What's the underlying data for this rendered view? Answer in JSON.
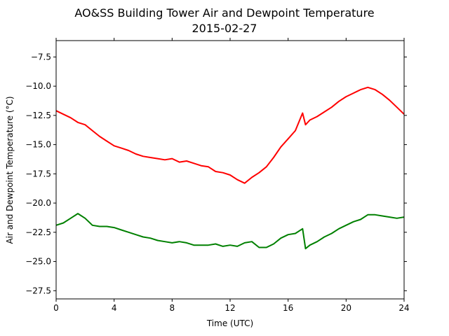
{
  "chart_data": {
    "type": "line",
    "title": "AO&SS Building Tower Air and Dewpoint Temperature",
    "subtitle": "2015-02-27",
    "xlabel": "Time (UTC)",
    "ylabel": "Air and Dewpoint Temperature (°C)",
    "xlim": [
      0,
      24
    ],
    "ylim": [
      -28.2,
      -6.1
    ],
    "xticks": [
      0,
      4,
      8,
      12,
      16,
      20,
      24
    ],
    "yticks": [
      -27.5,
      -25.0,
      -22.5,
      -20.0,
      -17.5,
      -15.0,
      -12.5,
      -10.0,
      -7.5
    ],
    "ytick_labels": [
      "−27.5",
      "−25.0",
      "−22.5",
      "−20.0",
      "−17.5",
      "−15.0",
      "−12.5",
      "−10.0",
      "−7.5"
    ],
    "grid": false,
    "series": [
      {
        "color": "#ff0000",
        "x": [
          0,
          0.5,
          1,
          1.5,
          2,
          2.5,
          3,
          3.5,
          4,
          4.5,
          5,
          5.5,
          6,
          6.5,
          7,
          7.5,
          8,
          8.5,
          9,
          9.5,
          10,
          10.5,
          11,
          11.5,
          12,
          12.5,
          13,
          13.5,
          14,
          14.5,
          15,
          15.5,
          16,
          16.5,
          17,
          17.2,
          17.5,
          18,
          18.5,
          19,
          19.5,
          20,
          20.5,
          21,
          21.5,
          22,
          22.5,
          23,
          23.5,
          24
        ],
        "y": [
          -12.1,
          -12.4,
          -12.7,
          -13.1,
          -13.3,
          -13.8,
          -14.3,
          -14.7,
          -15.1,
          -15.3,
          -15.5,
          -15.8,
          -16.0,
          -16.1,
          -16.2,
          -16.3,
          -16.2,
          -16.5,
          -16.4,
          -16.6,
          -16.8,
          -16.9,
          -17.3,
          -17.4,
          -17.6,
          -18.0,
          -18.3,
          -17.8,
          -17.4,
          -16.9,
          -16.1,
          -15.2,
          -14.5,
          -13.8,
          -12.3,
          -13.3,
          -12.9,
          -12.6,
          -12.2,
          -11.8,
          -11.3,
          -10.9,
          -10.6,
          -10.3,
          -10.1,
          -10.3,
          -10.7,
          -11.2,
          -11.8,
          -12.4
        ]
      },
      {
        "color": "#008000",
        "x": [
          0,
          0.5,
          1,
          1.5,
          2,
          2.5,
          3,
          3.5,
          4,
          4.5,
          5,
          5.5,
          6,
          6.5,
          7,
          7.5,
          8,
          8.5,
          9,
          9.5,
          10,
          10.5,
          11,
          11.5,
          12,
          12.5,
          13,
          13.5,
          14,
          14.5,
          15,
          15.5,
          16,
          16.5,
          17,
          17.2,
          17.5,
          18,
          18.5,
          19,
          19.5,
          20,
          20.5,
          21,
          21.5,
          22,
          22.5,
          23,
          23.5,
          24
        ],
        "y": [
          -21.9,
          -21.7,
          -21.3,
          -20.9,
          -21.3,
          -21.9,
          -22.0,
          -22.0,
          -22.1,
          -22.3,
          -22.5,
          -22.7,
          -22.9,
          -23.0,
          -23.2,
          -23.3,
          -23.4,
          -23.3,
          -23.4,
          -23.6,
          -23.6,
          -23.6,
          -23.5,
          -23.7,
          -23.6,
          -23.7,
          -23.4,
          -23.3,
          -23.8,
          -23.8,
          -23.5,
          -23.0,
          -22.7,
          -22.6,
          -22.2,
          -23.9,
          -23.6,
          -23.3,
          -22.9,
          -22.6,
          -22.2,
          -21.9,
          -21.6,
          -21.4,
          -21.0,
          -21.0,
          -21.1,
          -21.2,
          -21.3,
          -21.2
        ]
      }
    ]
  }
}
